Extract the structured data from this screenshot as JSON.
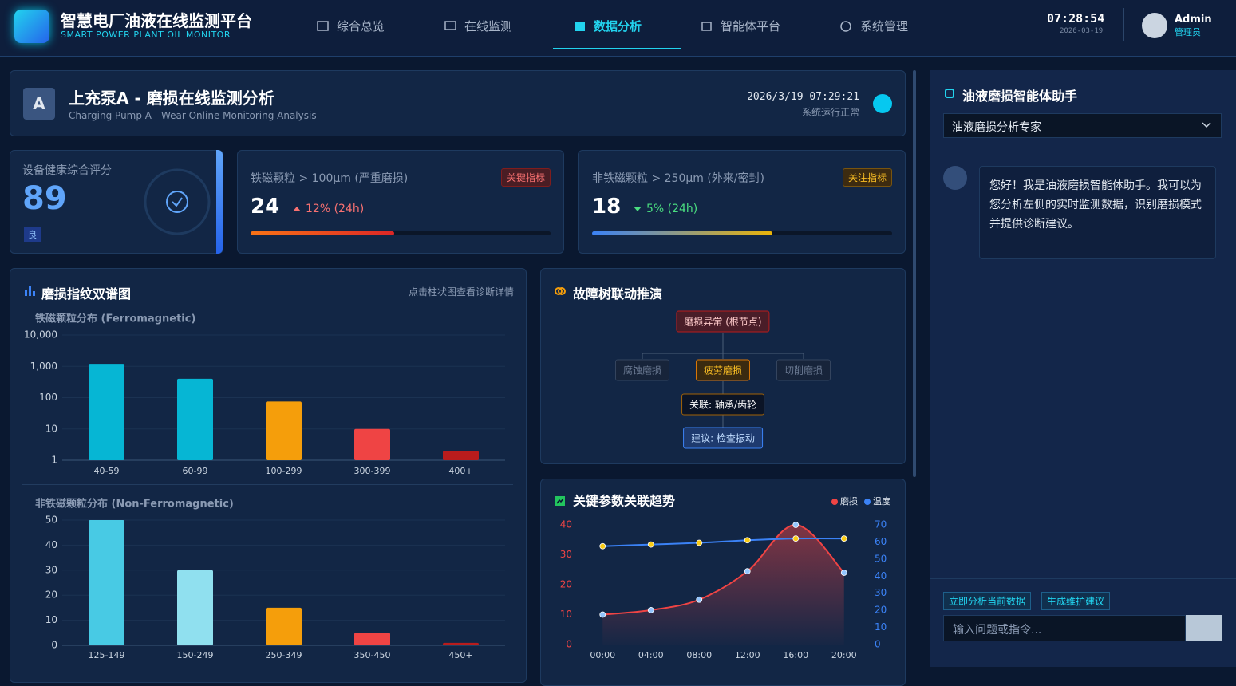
{
  "header": {
    "title": "智慧电厂油液在线监测平台",
    "subtitle": "SMART POWER PLANT OIL MONITOR",
    "nav": [
      "综合总览",
      "在线监测",
      "数据分析",
      "智能体平台",
      "系统管理"
    ],
    "time": "07:28:54",
    "date": "2026-03-19",
    "user": "Admin",
    "role": "管理员"
  },
  "device": {
    "badge": "A",
    "title": "上充泵A - 磨损在线监测分析",
    "subtitle": "Charging Pump A - Wear Online Monitoring Analysis",
    "timestamp": "2026/3/19 07:29:21",
    "status": "系统运行正常"
  },
  "health": {
    "label": "设备健康综合评分",
    "score": 89,
    "grade": "良"
  },
  "kpis": [
    {
      "label": "铁磁颗粒 > 100μm (严重磨损)",
      "tag": "关键指标",
      "value": 24,
      "change": "12% (24h)",
      "progress": 48
    },
    {
      "label": "非铁磁颗粒 > 250μm (外来/密封)",
      "tag": "关注指标",
      "value": 18,
      "change": "5% (24h)",
      "progress": 60
    }
  ],
  "spectrum": {
    "title": "磨损指纹双谱图",
    "hint": "点击柱状图查看诊断详情"
  },
  "fault_tree": {
    "title": "故障树联动推演",
    "root": "磨损异常 (根节点)",
    "children": [
      "腐蚀磨损",
      "疲劳磨损",
      "切削磨损"
    ],
    "link": "关联: 轴承/齿轮",
    "advice": "建议: 检查振动"
  },
  "assistant": {
    "title": "油液磨损智能体助手",
    "mode": "油液磨损分析专家",
    "message": "您好！我是油液磨损智能体助手。我可以为您分析左侧的实时监测数据，识别磨损模式并提供诊断建议。",
    "actions": [
      "立即分析当前数据",
      "生成维护建议"
    ],
    "placeholder": "输入问题或指令..."
  },
  "chart_data": [
    {
      "type": "bar",
      "title": "铁磁颗粒分布 (Ferromagnetic)",
      "categories": [
        "40-59",
        "60-99",
        "100-299",
        "300-399",
        "400+"
      ],
      "values": [
        1200,
        400,
        75,
        10,
        2
      ],
      "colors": [
        "#06b6d4",
        "#06b6d4",
        "#f59e0b",
        "#ef4444",
        "#b91c1c"
      ],
      "log_scale": true,
      "ylim": [
        1,
        10000
      ],
      "yticks": [
        1,
        10,
        100,
        {
          "value": 1000,
          "label": "1,000"
        },
        {
          "value": 10000,
          "label": "10,000"
        }
      ],
      "grid": true
    },
    {
      "type": "bar",
      "title": "非铁磁颗粒分布 (Non-Ferromagnetic)",
      "categories": [
        "125-149",
        "150-249",
        "250-349",
        "350-450",
        "450+"
      ],
      "values": [
        50,
        30,
        15,
        5,
        1
      ],
      "colors": [
        "#48cae4",
        "#90e0ef",
        "#f59e0b",
        "#ef4444",
        "#b91c1c"
      ],
      "ylim": [
        0,
        50
      ],
      "yticks": [
        0,
        10,
        20,
        30,
        40,
        50
      ],
      "grid": true
    },
    {
      "type": "line",
      "title": "关键参数关联趋势",
      "categories": [
        "00:00",
        "04:00",
        "08:00",
        "12:00",
        "16:00",
        "20:00"
      ],
      "series": [
        {
          "name": "磨损",
          "color": "#ef4444",
          "marker_color": "#93c5fd",
          "area": true,
          "values": [
            10,
            11.5,
            15,
            24.5,
            40,
            24
          ]
        },
        {
          "name": "温度",
          "color": "#3b82f6",
          "marker_color": "#facc15",
          "axis": "y2",
          "values": [
            57.5,
            58.5,
            59.5,
            61,
            62,
            62
          ]
        }
      ],
      "ylim": [
        0,
        40
      ],
      "yticks": [
        0,
        10,
        20,
        30,
        40
      ],
      "y2lim": [
        0,
        70
      ],
      "y2ticks": [
        0,
        10,
        20,
        30,
        40,
        50,
        60,
        70
      ],
      "legend": "upper right"
    }
  ]
}
